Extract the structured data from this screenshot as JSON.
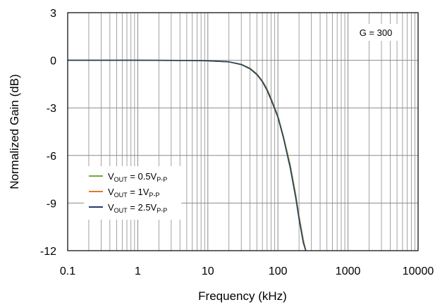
{
  "chart_data": {
    "type": "line",
    "x_scale": "log",
    "xlim": [
      0.1,
      10000
    ],
    "ylim": [
      -12,
      3
    ],
    "x_ticks": [
      0.1,
      1,
      10,
      100,
      1000,
      10000
    ],
    "x_tick_labels": [
      "0.1",
      "1",
      "10",
      "100",
      "1000",
      "10000"
    ],
    "y_ticks": [
      3,
      0,
      -3,
      -6,
      -9,
      -12
    ],
    "y_tick_labels": [
      "3",
      "0",
      "-3",
      "-6",
      "-9",
      "-12"
    ],
    "xlabel": "Frequency (kHz)",
    "ylabel": "Normalized Gain (dB)",
    "grid": true,
    "legend_position": "lower-left",
    "annotation": "G = 300",
    "series": [
      {
        "legend": {
          "v": "V",
          "sub1": "OUT",
          "eq": " = 0.5V",
          "sub2": "P-P"
        },
        "color": "#70a84a",
        "x": [
          0.1,
          1,
          5,
          10,
          20,
          30,
          40,
          50,
          60,
          70,
          80,
          100,
          120,
          150,
          180,
          200,
          230,
          250
        ],
        "y": [
          0,
          0,
          -0.01,
          -0.03,
          -0.1,
          -0.25,
          -0.5,
          -0.85,
          -1.3,
          -1.8,
          -2.4,
          -3.5,
          -4.8,
          -6.6,
          -8.5,
          -9.8,
          -11.3,
          -12
        ]
      },
      {
        "legend": {
          "v": "V",
          "sub1": "OUT",
          "eq": " = 1V",
          "sub2": "P-P"
        },
        "color": "#e07a2e",
        "x": [
          0.1,
          1,
          5,
          10,
          20,
          30,
          40,
          50,
          60,
          70,
          80,
          100,
          120,
          150,
          180,
          200,
          230,
          250
        ],
        "y": [
          0,
          0,
          -0.01,
          -0.03,
          -0.1,
          -0.26,
          -0.52,
          -0.87,
          -1.32,
          -1.85,
          -2.45,
          -3.55,
          -4.85,
          -6.7,
          -8.6,
          -9.9,
          -11.4,
          -12
        ]
      },
      {
        "legend": {
          "v": "V",
          "sub1": "OUT",
          "eq": " = 2.5V",
          "sub2": "P-P"
        },
        "color": "#1f3f5f",
        "x": [
          0.1,
          1,
          5,
          10,
          20,
          30,
          40,
          50,
          60,
          70,
          80,
          100,
          120,
          150,
          180,
          200,
          230,
          250
        ],
        "y": [
          0,
          0,
          -0.01,
          -0.03,
          -0.1,
          -0.27,
          -0.54,
          -0.9,
          -1.35,
          -1.9,
          -2.5,
          -3.6,
          -4.9,
          -6.8,
          -8.7,
          -10.0,
          -11.5,
          -12
        ]
      }
    ]
  }
}
